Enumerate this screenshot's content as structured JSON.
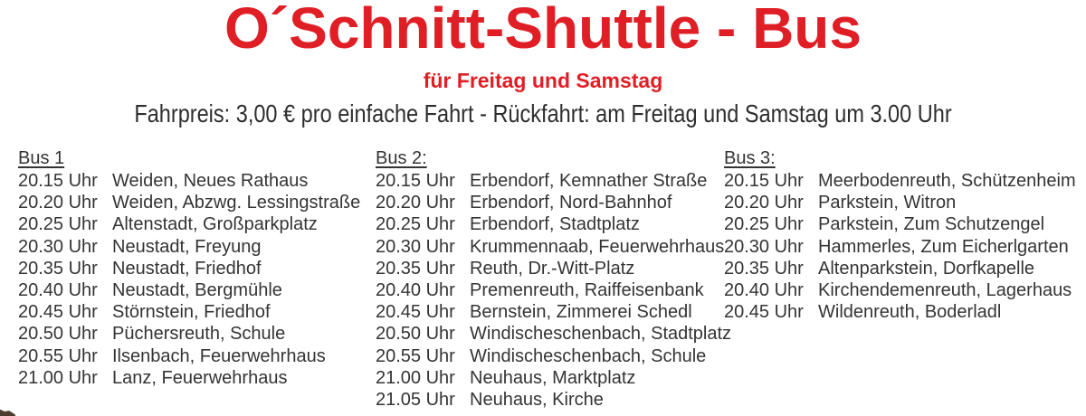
{
  "colors": {
    "accent_red": "#e01e25",
    "text": "#343434",
    "corner_wedge_brown": "#4d3b2f"
  },
  "header": {
    "title": "O´Schnitt-Shuttle - Bus",
    "subtitle": "für Freitag und Samstag",
    "fare_line": "Fahrpreis: 3,00 € pro einfache Fahrt - Rückfahrt: am Freitag und Samstag um 3.00 Uhr"
  },
  "buses": [
    {
      "label": "Bus 1",
      "stops": [
        {
          "time": "20.15 Uhr",
          "stop": "Weiden, Neues Rathaus"
        },
        {
          "time": "20.20 Uhr",
          "stop": "Weiden, Abzwg. Lessingstraße"
        },
        {
          "time": "20.25 Uhr",
          "stop": "Altenstadt, Großparkplatz"
        },
        {
          "time": "20.30 Uhr",
          "stop": "Neustadt, Freyung"
        },
        {
          "time": "20.35 Uhr",
          "stop": "Neustadt, Friedhof"
        },
        {
          "time": "20.40 Uhr",
          "stop": "Neustadt, Bergmühle"
        },
        {
          "time": "20.45 Uhr",
          "stop": "Störnstein, Friedhof"
        },
        {
          "time": "20.50 Uhr",
          "stop": "Püchersreuth, Schule"
        },
        {
          "time": "20.55 Uhr",
          "stop": "Ilsenbach, Feuerwehrhaus"
        },
        {
          "time": "21.00 Uhr",
          "stop": "Lanz, Feuerwehrhaus"
        }
      ]
    },
    {
      "label": "Bus 2:",
      "stops": [
        {
          "time": "20.15 Uhr",
          "stop": "Erbendorf, Kemnather Straße"
        },
        {
          "time": "20.20 Uhr",
          "stop": "Erbendorf, Nord-Bahnhof"
        },
        {
          "time": "20.25 Uhr",
          "stop": "Erbendorf, Stadtplatz"
        },
        {
          "time": "20.30 Uhr",
          "stop": "Krummennaab, Feuerwehrhaus"
        },
        {
          "time": "20.35 Uhr",
          "stop": "Reuth, Dr.-Witt-Platz"
        },
        {
          "time": "20.40 Uhr",
          "stop": "Premenreuth, Raiffeisenbank"
        },
        {
          "time": "20.45 Uhr",
          "stop": "Bernstein, Zimmerei Schedl"
        },
        {
          "time": "20.50 Uhr",
          "stop": "Windischeschenbach, Stadtplatz"
        },
        {
          "time": "20.55 Uhr",
          "stop": "Windischeschenbach, Schule"
        },
        {
          "time": "21.00 Uhr",
          "stop": "Neuhaus, Marktplatz"
        },
        {
          "time": "21.05 Uhr",
          "stop": "Neuhaus, Kirche"
        }
      ]
    },
    {
      "label": "Bus 3:",
      "stops": [
        {
          "time": "20.15 Uhr",
          "stop": "Meerbodenreuth, Schützenheim"
        },
        {
          "time": "20.20 Uhr",
          "stop": "Parkstein, Witron"
        },
        {
          "time": "20.25 Uhr",
          "stop": "Parkstein, Zum Schutzengel"
        },
        {
          "time": "20.30 Uhr",
          "stop": "Hammerles, Zum Eicherlgarten"
        },
        {
          "time": "20.35 Uhr",
          "stop": "Altenparkstein, Dorfkapelle"
        },
        {
          "time": "20.40 Uhr",
          "stop": "Kirchendemenreuth, Lagerhaus"
        },
        {
          "time": "20.45 Uhr",
          "stop": "Wildenreuth, Boderladl"
        }
      ]
    }
  ]
}
